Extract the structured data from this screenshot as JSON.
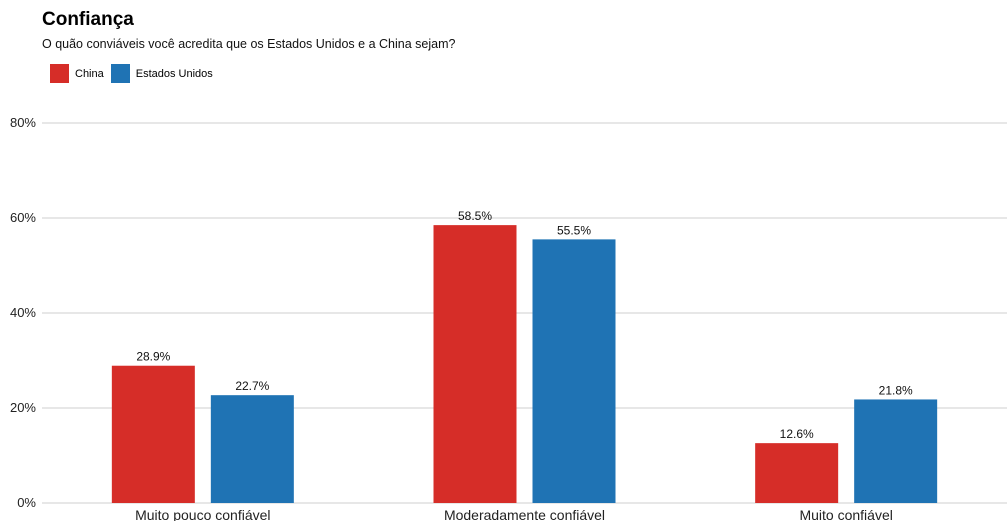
{
  "chart_data": {
    "type": "bar",
    "title": "Confiança",
    "subtitle": "O quão conviáveis você acredita que os Estados Unidos e a China sejam?",
    "categories": [
      "Muito pouco confiável",
      "Moderadamente confiável",
      "Muito confiável"
    ],
    "series": [
      {
        "name": "China",
        "color": "#d62d28",
        "values": [
          28.9,
          58.5,
          12.6
        ]
      },
      {
        "name": "Estados Unidos",
        "color": "#1f73b4",
        "values": [
          22.7,
          55.5,
          21.8
        ]
      }
    ],
    "value_labels": [
      [
        "28.9%",
        "58.5%",
        "12.6%"
      ],
      [
        "22.7%",
        "55.5%",
        "21.8%"
      ]
    ],
    "y_ticks": [
      0,
      20,
      40,
      60,
      80
    ],
    "y_tick_labels": [
      "0%",
      "20%",
      "40%",
      "60%",
      "80%"
    ],
    "ylim": [
      0,
      80
    ],
    "grid": true,
    "legend_position": "top-left"
  }
}
